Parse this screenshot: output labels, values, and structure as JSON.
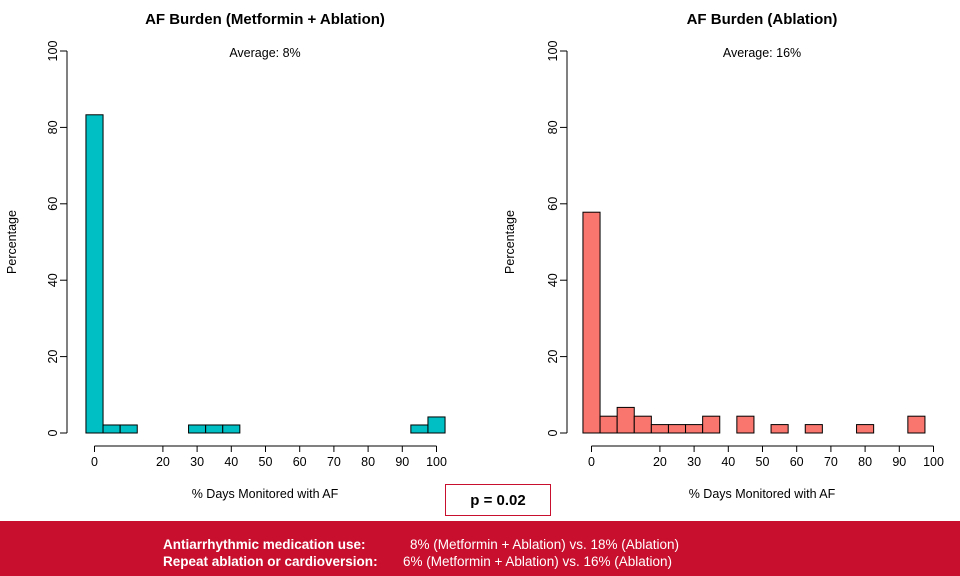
{
  "chart_data": [
    {
      "type": "bar",
      "title": "AF Burden (Metformin + Ablation)",
      "annotation": "Average: 8%",
      "xlabel": "% Days Monitored with AF",
      "ylabel": "Percentage",
      "ylim": [
        0,
        100
      ],
      "yticks": [
        "0",
        "20",
        "40",
        "60",
        "80",
        "100"
      ],
      "xticks": [
        "0",
        "20",
        "30",
        "40",
        "50",
        "60",
        "70",
        "80",
        "90",
        "100"
      ],
      "bin_width": 5,
      "bins": [
        {
          "start": -2.5,
          "value": 83.3
        },
        {
          "start": 2.5,
          "value": 2.1
        },
        {
          "start": 7.5,
          "value": 2.1
        },
        {
          "start": 27.5,
          "value": 2.1
        },
        {
          "start": 32.5,
          "value": 2.1
        },
        {
          "start": 37.5,
          "value": 2.1
        },
        {
          "start": 92.5,
          "value": 2.1
        },
        {
          "start": 97.5,
          "value": 4.2
        }
      ],
      "color": "#00bfc4"
    },
    {
      "type": "bar",
      "title": "AF Burden (Ablation)",
      "annotation": "Average: 16%",
      "xlabel": "% Days Monitored with AF",
      "ylabel": "Percentage",
      "ylim": [
        0,
        100
      ],
      "yticks": [
        "0",
        "20",
        "40",
        "60",
        "80",
        "100"
      ],
      "xticks": [
        "0",
        "20",
        "30",
        "40",
        "50",
        "60",
        "70",
        "80",
        "90",
        "100"
      ],
      "bin_width": 5,
      "bins": [
        {
          "start": -2.5,
          "value": 57.8
        },
        {
          "start": 2.5,
          "value": 4.4
        },
        {
          "start": 7.5,
          "value": 6.7
        },
        {
          "start": 12.5,
          "value": 4.4
        },
        {
          "start": 17.5,
          "value": 2.2
        },
        {
          "start": 22.5,
          "value": 2.2
        },
        {
          "start": 27.5,
          "value": 2.2
        },
        {
          "start": 32.5,
          "value": 4.4
        },
        {
          "start": 42.5,
          "value": 4.4
        },
        {
          "start": 52.5,
          "value": 2.2
        },
        {
          "start": 62.5,
          "value": 2.2
        },
        {
          "start": 77.5,
          "value": 2.2
        },
        {
          "start": 92.5,
          "value": 4.4
        }
      ],
      "color": "#f8766d"
    }
  ],
  "p_value": "p = 0.02",
  "footer": {
    "row1": {
      "label": "Antiarrhythmic medication use",
      "value": "8% (Metformin + Ablation)  vs. 18% (Ablation)"
    },
    "row2": {
      "label": "Repeat ablation or cardioversion",
      "value": "6% (Metformin + Ablation)  vs. 16% (Ablation)"
    }
  },
  "colors": {
    "accent": "#c8102e"
  }
}
